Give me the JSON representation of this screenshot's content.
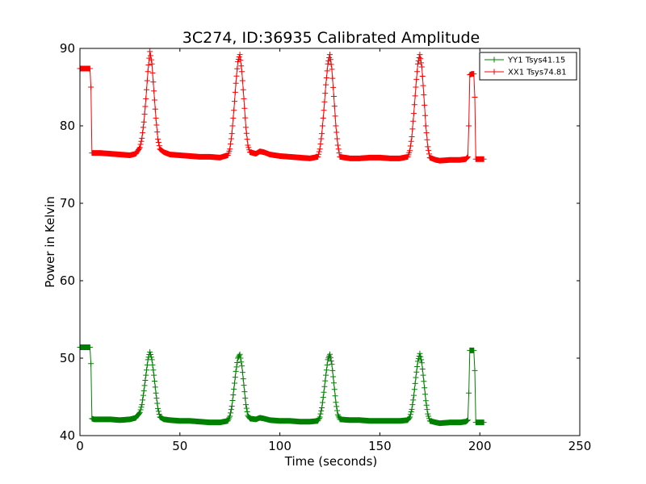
{
  "chart_data": {
    "type": "line",
    "title": "3C274, ID:36935 Calibrated Amplitude",
    "xlabel": "Time (seconds)",
    "ylabel": "Power in Kelvin",
    "xlim": [
      0,
      250
    ],
    "ylim": [
      40,
      90
    ],
    "xticks": [
      "0",
      "50",
      "100",
      "150",
      "200",
      "250"
    ],
    "yticks": [
      "40",
      "50",
      "60",
      "70",
      "80",
      "90"
    ],
    "legend_position": "top-right",
    "grid": false,
    "series": [
      {
        "name": "YY1 Tsys41.15",
        "color": "#008000",
        "marker": "plus",
        "points": [
          [
            0,
            51.4
          ],
          [
            1,
            51.4
          ],
          [
            2,
            51.4
          ],
          [
            3,
            51.4
          ],
          [
            4,
            51.4
          ],
          [
            5,
            51.4
          ],
          [
            5.5,
            49.3
          ],
          [
            6,
            42.2
          ],
          [
            7,
            42.1
          ],
          [
            10,
            42.1
          ],
          [
            15,
            42.1
          ],
          [
            20,
            42.0
          ],
          [
            25,
            42.1
          ],
          [
            28,
            42.3
          ],
          [
            30,
            43.0
          ],
          [
            31,
            44.0
          ],
          [
            32,
            45.8
          ],
          [
            33,
            47.8
          ],
          [
            34,
            49.8
          ],
          [
            35,
            50.8
          ],
          [
            36,
            49.8
          ],
          [
            37,
            47.8
          ],
          [
            38,
            45.5
          ],
          [
            39,
            43.5
          ],
          [
            40,
            42.4
          ],
          [
            42,
            42.1
          ],
          [
            45,
            42.0
          ],
          [
            50,
            41.9
          ],
          [
            55,
            41.9
          ],
          [
            60,
            41.8
          ],
          [
            65,
            41.7
          ],
          [
            70,
            41.7
          ],
          [
            74,
            41.9
          ],
          [
            75,
            42.5
          ],
          [
            76,
            43.8
          ],
          [
            77,
            46.0
          ],
          [
            78,
            48.3
          ],
          [
            79,
            50.0
          ],
          [
            80,
            50.5
          ],
          [
            81,
            49.0
          ],
          [
            82,
            46.5
          ],
          [
            83,
            44.0
          ],
          [
            84,
            42.6
          ],
          [
            85,
            42.2
          ],
          [
            88,
            42.1
          ],
          [
            90,
            42.3
          ],
          [
            92,
            42.2
          ],
          [
            95,
            42.0
          ],
          [
            100,
            41.9
          ],
          [
            105,
            41.9
          ],
          [
            110,
            41.8
          ],
          [
            115,
            41.8
          ],
          [
            119,
            41.9
          ],
          [
            120,
            42.4
          ],
          [
            121,
            43.6
          ],
          [
            122,
            45.6
          ],
          [
            123,
            47.8
          ],
          [
            124,
            49.8
          ],
          [
            125,
            50.5
          ],
          [
            126,
            49.2
          ],
          [
            127,
            46.8
          ],
          [
            128,
            44.3
          ],
          [
            129,
            42.7
          ],
          [
            130,
            42.1
          ],
          [
            135,
            42.0
          ],
          [
            140,
            42.0
          ],
          [
            145,
            41.9
          ],
          [
            150,
            41.9
          ],
          [
            155,
            41.9
          ],
          [
            160,
            41.9
          ],
          [
            164,
            42.0
          ],
          [
            165,
            42.4
          ],
          [
            166,
            43.4
          ],
          [
            167,
            45.2
          ],
          [
            168,
            47.5
          ],
          [
            169,
            49.6
          ],
          [
            170,
            50.6
          ],
          [
            171,
            49.4
          ],
          [
            172,
            47.0
          ],
          [
            173,
            44.5
          ],
          [
            174,
            42.8
          ],
          [
            175,
            41.9
          ],
          [
            178,
            41.7
          ],
          [
            180,
            41.6
          ],
          [
            185,
            41.7
          ],
          [
            190,
            41.7
          ],
          [
            193,
            41.8
          ],
          [
            194,
            42.0
          ],
          [
            194.5,
            45.5
          ],
          [
            195,
            51.0
          ],
          [
            196,
            51.0
          ],
          [
            197,
            51.0
          ],
          [
            197.5,
            48.4
          ],
          [
            198,
            41.7
          ],
          [
            199,
            41.7
          ],
          [
            200,
            41.7
          ],
          [
            201,
            41.7
          ],
          [
            202,
            41.7
          ]
        ]
      },
      {
        "name": "XX1 Tsys74.81",
        "color": "#ff0000",
        "marker": "plus",
        "points": [
          [
            0,
            87.4
          ],
          [
            1,
            87.4
          ],
          [
            2,
            87.4
          ],
          [
            3,
            87.4
          ],
          [
            4,
            87.4
          ],
          [
            5,
            87.4
          ],
          [
            5.5,
            85.0
          ],
          [
            6,
            76.5
          ],
          [
            7,
            76.5
          ],
          [
            10,
            76.5
          ],
          [
            15,
            76.4
          ],
          [
            20,
            76.3
          ],
          [
            25,
            76.2
          ],
          [
            28,
            76.4
          ],
          [
            30,
            77.2
          ],
          [
            31,
            78.4
          ],
          [
            32,
            80.5
          ],
          [
            33,
            83.5
          ],
          [
            34,
            87.0
          ],
          [
            35,
            89.6
          ],
          [
            36,
            88.0
          ],
          [
            37,
            84.5
          ],
          [
            38,
            81.0
          ],
          [
            39,
            78.3
          ],
          [
            40,
            77.0
          ],
          [
            42,
            76.6
          ],
          [
            45,
            76.3
          ],
          [
            50,
            76.2
          ],
          [
            55,
            76.1
          ],
          [
            60,
            76.0
          ],
          [
            65,
            76.0
          ],
          [
            70,
            75.9
          ],
          [
            74,
            76.2
          ],
          [
            75,
            77.0
          ],
          [
            76,
            79.0
          ],
          [
            77,
            82.0
          ],
          [
            78,
            85.5
          ],
          [
            79,
            88.3
          ],
          [
            80,
            89.2
          ],
          [
            81,
            87.0
          ],
          [
            82,
            83.5
          ],
          [
            83,
            79.8
          ],
          [
            84,
            77.5
          ],
          [
            85,
            76.6
          ],
          [
            88,
            76.4
          ],
          [
            90,
            76.7
          ],
          [
            92,
            76.6
          ],
          [
            95,
            76.3
          ],
          [
            100,
            76.1
          ],
          [
            105,
            76.0
          ],
          [
            110,
            75.9
          ],
          [
            115,
            75.8
          ],
          [
            119,
            76.0
          ],
          [
            120,
            77.0
          ],
          [
            121,
            79.0
          ],
          [
            122,
            82.0
          ],
          [
            123,
            85.3
          ],
          [
            124,
            88.0
          ],
          [
            125,
            89.2
          ],
          [
            126,
            87.3
          ],
          [
            127,
            83.8
          ],
          [
            128,
            80.0
          ],
          [
            129,
            77.5
          ],
          [
            130,
            76.0
          ],
          [
            135,
            75.8
          ],
          [
            140,
            75.8
          ],
          [
            145,
            75.9
          ],
          [
            150,
            75.9
          ],
          [
            155,
            75.8
          ],
          [
            160,
            75.8
          ],
          [
            164,
            76.0
          ],
          [
            165,
            76.8
          ],
          [
            166,
            78.6
          ],
          [
            167,
            81.6
          ],
          [
            168,
            85.0
          ],
          [
            169,
            88.0
          ],
          [
            170,
            89.2
          ],
          [
            171,
            87.6
          ],
          [
            172,
            84.0
          ],
          [
            173,
            80.0
          ],
          [
            174,
            77.3
          ],
          [
            175,
            75.9
          ],
          [
            178,
            75.6
          ],
          [
            180,
            75.5
          ],
          [
            185,
            75.6
          ],
          [
            190,
            75.6
          ],
          [
            193,
            75.7
          ],
          [
            194,
            76.0
          ],
          [
            194.5,
            80.0
          ],
          [
            195,
            86.6
          ],
          [
            196,
            86.7
          ],
          [
            197,
            86.7
          ],
          [
            197.5,
            83.7
          ],
          [
            198,
            75.7
          ],
          [
            199,
            75.7
          ],
          [
            200,
            75.7
          ],
          [
            201,
            75.7
          ],
          [
            202,
            75.7
          ]
        ]
      }
    ]
  }
}
